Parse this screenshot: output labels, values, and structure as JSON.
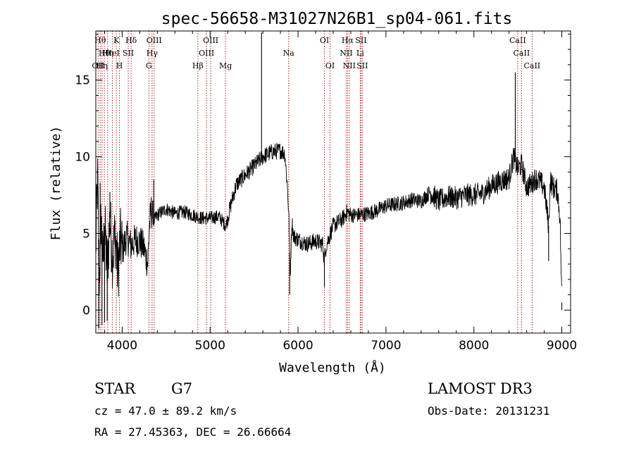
{
  "chart_data": {
    "type": "line",
    "title": "spec-56658-M31027N26B1_sp04-061.fits",
    "xlabel": "Wavelength (Å)",
    "ylabel": "Flux (relative)",
    "xlim": [
      3700,
      9100
    ],
    "ylim": [
      -1.5,
      18.2
    ],
    "xticks": [
      4000,
      5000,
      6000,
      7000,
      8000,
      9000
    ],
    "yticks": [
      0,
      5,
      10,
      15
    ],
    "grid": false,
    "line_color": "#000000",
    "marker_color": "#b22222",
    "spectrum_anchors": [
      [
        3700,
        4.0
      ],
      [
        3720,
        8.5
      ],
      [
        3740,
        2.0
      ],
      [
        3760,
        6.0
      ],
      [
        3780,
        3.0
      ],
      [
        3800,
        5.5
      ],
      [
        3830,
        2.5
      ],
      [
        3860,
        6.0
      ],
      [
        3890,
        3.5
      ],
      [
        3920,
        5.0
      ],
      [
        3950,
        2.5
      ],
      [
        3980,
        4.5
      ],
      [
        4010,
        4.0
      ],
      [
        4050,
        4.8
      ],
      [
        4100,
        4.2
      ],
      [
        4150,
        4.6
      ],
      [
        4200,
        4.5
      ],
      [
        4250,
        4.0
      ],
      [
        4290,
        3.0
      ],
      [
        4310,
        5.5
      ],
      [
        4330,
        6.5
      ],
      [
        4360,
        5.8
      ],
      [
        4400,
        6.2
      ],
      [
        4500,
        6.6
      ],
      [
        4600,
        6.3
      ],
      [
        4700,
        6.4
      ],
      [
        4800,
        6.2
      ],
      [
        4850,
        6.1
      ],
      [
        4900,
        6.0
      ],
      [
        5000,
        6.0
      ],
      [
        5100,
        6.1
      ],
      [
        5180,
        5.5
      ],
      [
        5250,
        7.2
      ],
      [
        5300,
        8.2
      ],
      [
        5400,
        8.8
      ],
      [
        5500,
        9.4
      ],
      [
        5600,
        10.0
      ],
      [
        5700,
        10.3
      ],
      [
        5800,
        10.4
      ],
      [
        5850,
        10.2
      ],
      [
        5880,
        8.0
      ],
      [
        5900,
        5.5
      ],
      [
        5910,
        2.0
      ],
      [
        5930,
        5.8
      ],
      [
        5950,
        4.8
      ],
      [
        6000,
        4.6
      ],
      [
        6100,
        4.3
      ],
      [
        6200,
        4.5
      ],
      [
        6280,
        4.3
      ],
      [
        6300,
        3.2
      ],
      [
        6320,
        4.2
      ],
      [
        6400,
        5.5
      ],
      [
        6500,
        5.9
      ],
      [
        6560,
        6.4
      ],
      [
        6600,
        6.2
      ],
      [
        6700,
        6.2
      ],
      [
        6800,
        6.3
      ],
      [
        6900,
        6.5
      ],
      [
        7000,
        6.8
      ],
      [
        7100,
        6.9
      ],
      [
        7200,
        7.0
      ],
      [
        7300,
        7.2
      ],
      [
        7400,
        7.1
      ],
      [
        7500,
        7.7
      ],
      [
        7600,
        7.1
      ],
      [
        7700,
        7.4
      ],
      [
        7800,
        7.3
      ],
      [
        7900,
        7.5
      ],
      [
        8000,
        7.5
      ],
      [
        8100,
        7.6
      ],
      [
        8200,
        8.1
      ],
      [
        8300,
        8.4
      ],
      [
        8400,
        8.6
      ],
      [
        8450,
        10.0
      ],
      [
        8500,
        9.2
      ],
      [
        8542,
        9.5
      ],
      [
        8600,
        8.0
      ],
      [
        8662,
        8.3
      ],
      [
        8700,
        8.6
      ],
      [
        8750,
        8.4
      ],
      [
        8800,
        8.0
      ],
      [
        8850,
        5.5
      ],
      [
        8870,
        8.5
      ],
      [
        8900,
        8.0
      ],
      [
        8950,
        7.8
      ],
      [
        8980,
        6.0
      ],
      [
        9000,
        0.5
      ]
    ],
    "spikes": [
      {
        "x": 3720,
        "y": 9.3
      },
      {
        "x": 3735,
        "y": -1.2
      },
      {
        "x": 3750,
        "y": 8.3
      },
      {
        "x": 3770,
        "y": -1.0
      },
      {
        "x": 3800,
        "y": -0.8
      },
      {
        "x": 3830,
        "y": -0.7
      },
      {
        "x": 3860,
        "y": 7.7
      },
      {
        "x": 4360,
        "y": 8.5
      },
      {
        "x": 5585,
        "y": 18.1
      },
      {
        "x": 5905,
        "y": 1.0
      },
      {
        "x": 6300,
        "y": 1.5
      },
      {
        "x": 8471,
        "y": 15.5
      },
      {
        "x": 8850,
        "y": 3.2
      },
      {
        "x": 9000,
        "y": 0.0
      }
    ],
    "line_markers": [
      {
        "x": 3727,
        "label": "OII",
        "row": 2
      },
      {
        "x": 3750,
        "label": "Hθ",
        "row": 0
      },
      {
        "x": 3770,
        "label": "Hη",
        "row": 2
      },
      {
        "x": 3797,
        "label": "Hθ",
        "row": 1
      },
      {
        "x": 3835,
        "label": "Hη",
        "row": 1
      },
      {
        "x": 3889,
        "label": "HeI",
        "row": 1
      },
      {
        "x": 3934,
        "label": "K",
        "row": 0
      },
      {
        "x": 3969,
        "label": "H",
        "row": 2
      },
      {
        "x": 4069,
        "label": "SII",
        "row": 1
      },
      {
        "x": 4102,
        "label": "Hδ",
        "row": 0
      },
      {
        "x": 4304,
        "label": "G",
        "row": 2
      },
      {
        "x": 4340,
        "label": "Hγ",
        "row": 1
      },
      {
        "x": 4363,
        "label": "OIII",
        "row": 0
      },
      {
        "x": 4861,
        "label": "Hβ",
        "row": 2
      },
      {
        "x": 4959,
        "label": "OIII",
        "row": 1
      },
      {
        "x": 5007,
        "label": "OIII",
        "row": 0
      },
      {
        "x": 5175,
        "label": "Mg",
        "row": 2
      },
      {
        "x": 5893,
        "label": "Na",
        "row": 1
      },
      {
        "x": 6300,
        "label": "OI",
        "row": 0
      },
      {
        "x": 6364,
        "label": "OI",
        "row": 2
      },
      {
        "x": 6548,
        "label": "NII",
        "row": 1
      },
      {
        "x": 6563,
        "label": "Hα",
        "row": 0
      },
      {
        "x": 6583,
        "label": "NII",
        "row": 2
      },
      {
        "x": 6707,
        "label": "Li",
        "row": 1
      },
      {
        "x": 6716,
        "label": "SII",
        "row": 0
      },
      {
        "x": 6731,
        "label": "SII",
        "row": 2
      },
      {
        "x": 8498,
        "label": "CaII",
        "row": 0
      },
      {
        "x": 8542,
        "label": "CaII",
        "row": 1
      },
      {
        "x": 8662,
        "label": "CaII",
        "row": 2
      }
    ]
  },
  "info": {
    "object_class": "STAR",
    "subclass": "G7",
    "survey": "LAMOST DR3",
    "redshift": "cz = 47.0 ± 89.2 km/s",
    "obs_date": "Obs-Date: 20131231",
    "coords": "RA =  27.45363, DEC =  26.66664"
  }
}
